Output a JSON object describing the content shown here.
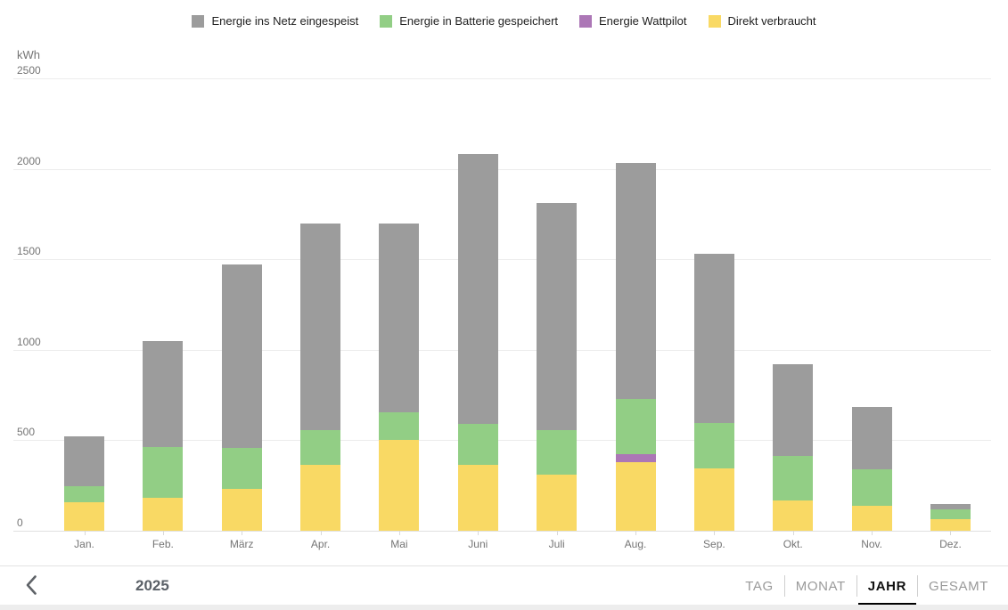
{
  "chart": {
    "unit_label": "kWh"
  },
  "chart_data": {
    "type": "bar",
    "stacked": true,
    "title": "",
    "ylabel": "kWh",
    "ylim": [
      0,
      2500
    ],
    "yticks": [
      0,
      500,
      1000,
      1500,
      2000,
      2500
    ],
    "grid": true,
    "legend_position": "top",
    "categories": [
      "Jan.",
      "Feb.",
      "März",
      "Apr.",
      "Mai",
      "Juni",
      "Juli",
      "Aug.",
      "Sep.",
      "Okt.",
      "Nov.",
      "Dez."
    ],
    "series": [
      {
        "name": "Direkt verbraucht",
        "color": "#f9d964",
        "values": [
          160,
          184,
          230,
          362,
          500,
          362,
          309,
          378,
          345,
          166,
          137,
          65
        ]
      },
      {
        "name": "Energie Wattpilot",
        "color": "#ac77b6",
        "values": [
          0,
          0,
          0,
          0,
          0,
          0,
          0,
          45,
          0,
          0,
          0,
          0
        ]
      },
      {
        "name": "Energie in Batterie gespeichert",
        "color": "#92ce85",
        "values": [
          88,
          281,
          230,
          192,
          156,
          230,
          247,
          304,
          250,
          248,
          203,
          53
        ]
      },
      {
        "name": "Energie ins Netz eingespeist",
        "color": "#9c9c9c",
        "values": [
          272,
          585,
          1010,
          1146,
          1044,
          1488,
          1254,
          1308,
          935,
          506,
          345,
          30
        ]
      }
    ],
    "totals": [
      520,
      1050,
      1470,
      1700,
      1700,
      2080,
      1810,
      2035,
      1530,
      920,
      685,
      148
    ],
    "legend_order": [
      "Energie ins Netz eingespeist",
      "Energie in Batterie gespeichert",
      "Energie Wattpilot",
      "Direkt verbraucht"
    ]
  },
  "footer": {
    "back_icon": "chevron-left",
    "year": "2025",
    "tabs": [
      {
        "label": "TAG",
        "active": false
      },
      {
        "label": "MONAT",
        "active": false
      },
      {
        "label": "JAHR",
        "active": true
      },
      {
        "label": "GESAMT",
        "active": false
      }
    ]
  }
}
